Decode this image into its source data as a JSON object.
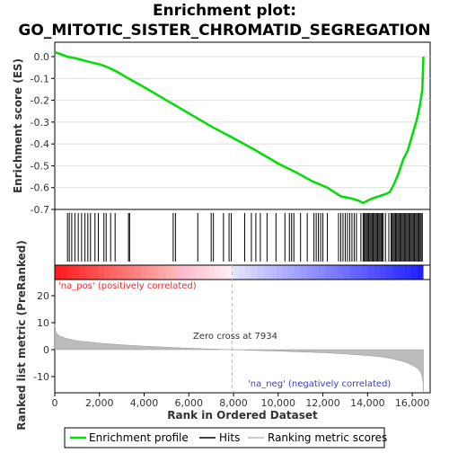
{
  "chart_data": {
    "type": "line",
    "title": "Enrichment plot:",
    "subtitle": "GO_MITOTIC_SISTER_CHROMATID_SEGREGATION",
    "xlabel": "Rank in Ordered Dataset",
    "ylabel_top": "Enrichment score (ES)",
    "ylabel_bottom": "Ranked list metric (PreRanked)",
    "xlim": [
      0,
      16800
    ],
    "es_ylim": [
      -0.7,
      0.03
    ],
    "metric_ylim": [
      -16,
      26
    ],
    "x_ticks": [
      0,
      2000,
      4000,
      6000,
      8000,
      10000,
      12000,
      14000,
      16000
    ],
    "x_tick_labels": [
      "0",
      "2,000",
      "4,000",
      "6,000",
      "8,000",
      "10,000",
      "12,000",
      "14,000",
      "16,000"
    ],
    "es_ticks": [
      0.0,
      -0.1,
      -0.2,
      -0.3,
      -0.4,
      -0.5,
      -0.6,
      -0.7
    ],
    "es_tick_labels": [
      "0.0",
      "-0.1",
      "-0.2",
      "-0.3",
      "-0.4",
      "-0.5",
      "-0.6",
      "-0.7"
    ],
    "metric_ticks": [
      20,
      10,
      0,
      -10
    ],
    "metric_tick_labels": [
      "20",
      "10",
      "0",
      "-10"
    ],
    "zero_cross": 7934,
    "zero_cross_label": "Zero cross at 7934",
    "pos_label": "'na_pos' (positively correlated)",
    "neg_label": "'na_neg' (negatively correlated)",
    "series": [
      {
        "name": "Enrichment profile",
        "color": "#00dd00",
        "x": [
          0,
          300,
          550,
          800,
          1100,
          1400,
          1700,
          2000,
          2400,
          2800,
          3300,
          4000,
          5000,
          6000,
          7000,
          7934,
          9000,
          10000,
          10800,
          11500,
          12200,
          12800,
          13300,
          13600,
          13800,
          14000,
          14200,
          14500,
          14800,
          15000,
          15200,
          15400,
          15600,
          15800,
          16000,
          16200,
          16350,
          16450,
          16500
        ],
        "y": [
          0.02,
          0.01,
          0.0,
          -0.005,
          -0.012,
          -0.02,
          -0.028,
          -0.035,
          -0.05,
          -0.07,
          -0.1,
          -0.14,
          -0.2,
          -0.26,
          -0.32,
          -0.37,
          -0.43,
          -0.49,
          -0.53,
          -0.57,
          -0.6,
          -0.64,
          -0.65,
          -0.66,
          -0.67,
          -0.66,
          -0.65,
          -0.64,
          -0.63,
          -0.62,
          -0.58,
          -0.53,
          -0.47,
          -0.43,
          -0.36,
          -0.29,
          -0.22,
          -0.15,
          0.0
        ]
      },
      {
        "name": "Hits",
        "color": "#000000",
        "x": [
          570,
          650,
          760,
          900,
          1050,
          1200,
          1350,
          1480,
          1600,
          1800,
          1950,
          2200,
          2300,
          2500,
          2700,
          3300,
          3350,
          5300,
          5400,
          6400,
          7000,
          7100,
          7550,
          7800,
          7900,
          8500,
          8800,
          9000,
          9200,
          9500,
          9900,
          10300,
          10500,
          10600,
          10700,
          11000,
          11300,
          11600,
          11700,
          11800,
          11900,
          12000,
          12200,
          12700,
          12800,
          12900,
          13000,
          13100,
          13200,
          13300,
          13400,
          13500,
          13700,
          13800,
          13850,
          13900,
          13950,
          14000,
          14050,
          14100,
          14150,
          14200,
          14250,
          14300,
          14350,
          14400,
          14450,
          14500,
          14550,
          14600,
          14650,
          14700,
          14800,
          14950,
          15050,
          15100,
          15150,
          15200,
          15250,
          15300,
          15350,
          15400,
          15450,
          15500,
          15550,
          15600,
          15650,
          15700,
          15750,
          15800,
          15850,
          15900,
          15950,
          16000,
          16050,
          16100,
          16150,
          16200,
          16250,
          16300,
          16350,
          16400,
          16450
        ]
      },
      {
        "name": "Ranking metric scores",
        "color": "#bbbbbb",
        "x": [
          0,
          50,
          200,
          500,
          1000,
          2000,
          3000,
          4000,
          5000,
          6000,
          7000,
          7934,
          9000,
          10000,
          11000,
          12000,
          13000,
          14000,
          14500,
          15000,
          15500,
          15800,
          16000,
          16200,
          16350,
          16430,
          16480,
          16500
        ],
        "y": [
          9.5,
          6.5,
          5.2,
          4.2,
          3.3,
          2.4,
          1.8,
          1.3,
          0.9,
          0.55,
          0.25,
          0.0,
          -0.3,
          -0.55,
          -0.85,
          -1.15,
          -1.6,
          -2.2,
          -2.6,
          -3.2,
          -4.2,
          -5.0,
          -5.8,
          -6.8,
          -8.0,
          -9.5,
          -12.0,
          -15.5
        ]
      }
    ]
  }
}
